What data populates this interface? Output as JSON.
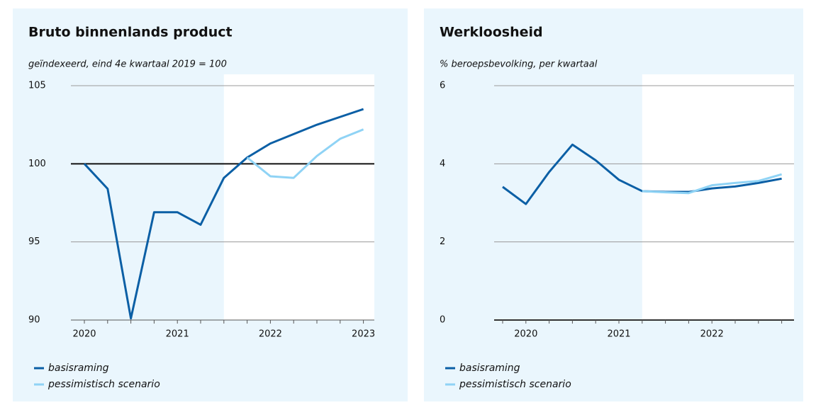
{
  "chart_data": [
    {
      "type": "line",
      "title": "Bruto binnenlands product",
      "subtitle": "geïndexeerd, eind 4e kwartaal 2019 = 100",
      "categories": [
        "2020",
        null,
        null,
        null,
        "2021",
        null,
        null,
        null,
        "2022",
        null,
        null,
        null,
        "2023"
      ],
      "series": [
        {
          "name": "basisraming",
          "color": "#0b5fa5",
          "values": [
            100,
            98.4,
            90.1,
            96.9,
            96.9,
            96.1,
            99.1,
            100.4,
            101.3,
            101.9,
            102.5,
            103.0,
            103.5
          ]
        },
        {
          "name": "pessimistisch scenario",
          "color": "#8fd3f5",
          "values": [
            null,
            null,
            null,
            null,
            null,
            null,
            null,
            100.4,
            99.2,
            99.1,
            100.5,
            101.6,
            102.2
          ]
        }
      ],
      "ylim": [
        90,
        105
      ],
      "yticks": [
        90,
        95,
        100,
        105
      ],
      "reference_line": 100,
      "grid": true
    },
    {
      "type": "line",
      "title": "Werkloosheid",
      "subtitle": "% beroepsbevolking, per kwartaal",
      "categories": [
        null,
        "2020",
        null,
        null,
        null,
        "2021",
        null,
        null,
        null,
        "2022",
        null,
        null,
        null
      ],
      "series": [
        {
          "name": "basisraming",
          "color": "#0b5fa5",
          "values": [
            3.41,
            2.97,
            3.79,
            4.49,
            4.09,
            3.59,
            3.3,
            3.28,
            3.28,
            3.37,
            3.42,
            3.51,
            3.62
          ]
        },
        {
          "name": "pessimistisch scenario",
          "color": "#8fd3f5",
          "values": [
            null,
            null,
            null,
            null,
            null,
            null,
            3.3,
            3.27,
            3.25,
            3.45,
            3.51,
            3.56,
            3.73
          ]
        }
      ],
      "ylim": [
        0,
        6
      ],
      "yticks": [
        0,
        2,
        4,
        6
      ],
      "reference_line": 0,
      "grid": true
    }
  ]
}
